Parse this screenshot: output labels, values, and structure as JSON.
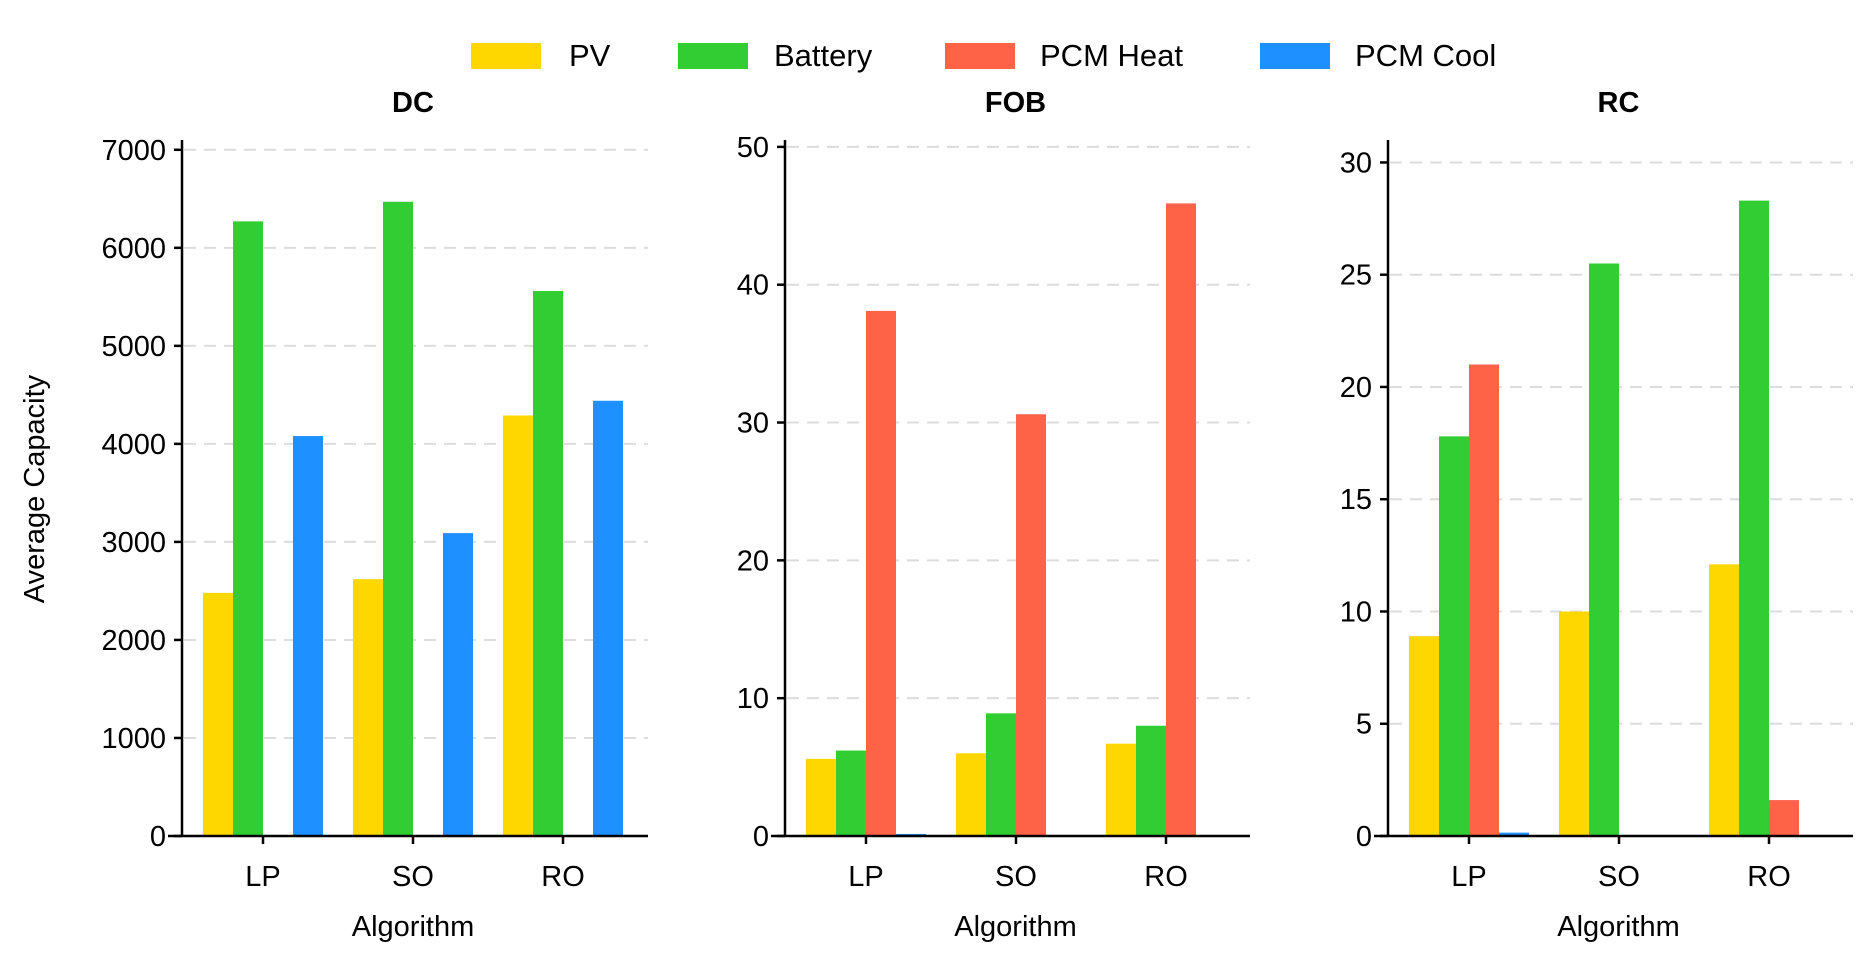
{
  "chart_data": {
    "type": "bar",
    "legend": {
      "placement": "top-center",
      "entries": [
        "PV",
        "Battery",
        "PCM Heat",
        "PCM Cool"
      ]
    },
    "series_colors": {
      "PV": "#FFD700",
      "Battery": "#32CD32",
      "PCM Heat": "#FF6347",
      "PCM Cool": "#1E90FF"
    },
    "grid": true,
    "shared_ylabel": "Average Capacity",
    "panels": [
      {
        "title": "DC",
        "xlabel": "Algorithm",
        "ylabel": "Average Capacity",
        "categories": [
          "LP",
          "SO",
          "RO"
        ],
        "ylim": [
          0,
          7100
        ],
        "yticks": [
          0,
          1000,
          2000,
          3000,
          4000,
          5000,
          6000,
          7000
        ],
        "series": [
          {
            "name": "PV",
            "values": [
              2480,
              2620,
              4290
            ]
          },
          {
            "name": "Battery",
            "values": [
              6270,
              6470,
              5560
            ]
          },
          {
            "name": "PCM Heat",
            "values": [
              0,
              0,
              0
            ]
          },
          {
            "name": "PCM Cool",
            "values": [
              4080,
              3090,
              4440
            ]
          }
        ]
      },
      {
        "title": "FOB",
        "xlabel": "Algorithm",
        "ylabel": "",
        "categories": [
          "LP",
          "SO",
          "RO"
        ],
        "ylim": [
          0,
          50.5
        ],
        "yticks": [
          0,
          10,
          20,
          30,
          40,
          50
        ],
        "series": [
          {
            "name": "PV",
            "values": [
              5.6,
              6.0,
              6.7
            ]
          },
          {
            "name": "Battery",
            "values": [
              6.2,
              8.9,
              8.0
            ]
          },
          {
            "name": "PCM Heat",
            "values": [
              38.1,
              30.6,
              45.9
            ]
          },
          {
            "name": "PCM Cool",
            "values": [
              0.15,
              0,
              0
            ]
          }
        ]
      },
      {
        "title": "RC",
        "xlabel": "Algorithm",
        "ylabel": "",
        "categories": [
          "LP",
          "SO",
          "RO"
        ],
        "ylim": [
          0,
          31
        ],
        "yticks": [
          0,
          5,
          10,
          15,
          20,
          25,
          30
        ],
        "series": [
          {
            "name": "PV",
            "values": [
              8.9,
              10.0,
              12.1
            ]
          },
          {
            "name": "Battery",
            "values": [
              17.8,
              25.5,
              28.3
            ]
          },
          {
            "name": "PCM Heat",
            "values": [
              21.0,
              0,
              1.6
            ]
          },
          {
            "name": "PCM Cool",
            "values": [
              0.15,
              0,
              0
            ]
          }
        ]
      }
    ]
  }
}
